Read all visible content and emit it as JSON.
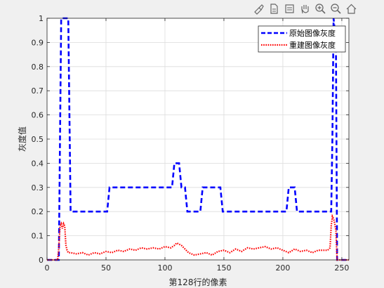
{
  "toolbar": {
    "icons": [
      "brush-icon",
      "export-icon",
      "data-tips-icon",
      "pan-icon",
      "zoom-in-icon",
      "zoom-out-icon",
      "home-icon"
    ]
  },
  "chart_data": {
    "type": "line",
    "xlabel": "第128行的像素",
    "ylabel": "灰度值",
    "xlim": [
      0,
      256
    ],
    "ylim": [
      0,
      1
    ],
    "xticks": [
      "0",
      "50",
      "100",
      "150",
      "200",
      "250"
    ],
    "xtick_values": [
      0,
      50,
      100,
      150,
      200,
      250
    ],
    "yticks": [
      "0",
      "0.1",
      "0.2",
      "0.3",
      "0.4",
      "0.5",
      "0.6",
      "0.7",
      "0.8",
      "0.9",
      "1"
    ],
    "ytick_values": [
      0,
      0.1,
      0.2,
      0.3,
      0.4,
      0.5,
      0.6,
      0.7,
      0.8,
      0.9,
      1
    ],
    "grid": true,
    "legend_position": "top-right",
    "series": [
      {
        "name": "原始图像灰度",
        "color": "#0000ff",
        "style": "dashed",
        "x": [
          0,
          10,
          11,
          12,
          18,
          19,
          20,
          51,
          52,
          53,
          54,
          105,
          106,
          107,
          108,
          109,
          110,
          111,
          112,
          113,
          114,
          115,
          116,
          117,
          118,
          119,
          120,
          121,
          122,
          123,
          130,
          131,
          132,
          133,
          134,
          135,
          136,
          137,
          138,
          139,
          140,
          141,
          142,
          143,
          144,
          145,
          146,
          147,
          148,
          149,
          150,
          151,
          152,
          153,
          154,
          155,
          156,
          203,
          204,
          205,
          206,
          207,
          208,
          209,
          210,
          211,
          212,
          213,
          214,
          215,
          216,
          217,
          218,
          219,
          220,
          221,
          222,
          223,
          240,
          241,
          242,
          243,
          244,
          245,
          246,
          247,
          248,
          249,
          250,
          251,
          252,
          253,
          254,
          255,
          256
        ],
        "y": [
          0,
          0,
          0.5,
          1,
          1,
          0.6,
          0.2,
          0.2,
          0.25,
          0.3,
          0.3,
          0.3,
          0.3,
          0.35,
          0.4,
          0.4,
          0.4,
          0.4,
          0.4,
          0.35,
          0.3,
          0.3,
          0.3,
          0.3,
          0.25,
          0.2,
          0.2,
          0.2,
          0.2,
          0.2,
          0.2,
          0.25,
          0.3,
          0.3,
          0.3,
          0.3,
          0.3,
          0.3,
          0.3,
          0.3,
          0.3,
          0.3,
          0.3,
          0.3,
          0.3,
          0.3,
          0.3,
          0.3,
          0.25,
          0.2,
          0.2,
          0.2,
          0.2,
          0.2,
          0.2,
          0.2,
          0.2,
          0.2,
          0.25,
          0.3,
          0.3,
          0.3,
          0.3,
          0.3,
          0.3,
          0.25,
          0.2,
          0.2,
          0.2,
          0.2,
          0.2,
          0.2,
          0.2,
          0.2,
          0.2,
          0.2,
          0.2,
          0.2,
          0.2,
          0.2,
          0.5,
          1,
          0.95,
          0.9,
          0,
          0,
          0,
          0,
          0,
          0,
          0,
          0,
          0,
          0,
          0
        ]
      },
      {
        "name": "重建图像灰度",
        "color": "#ff0000",
        "style": "dotted",
        "x": [
          0,
          9,
          10,
          11,
          12,
          13,
          14,
          15,
          16,
          17,
          18,
          20,
          25,
          30,
          35,
          40,
          45,
          50,
          55,
          60,
          65,
          70,
          75,
          80,
          85,
          90,
          95,
          100,
          105,
          108,
          110,
          112,
          114,
          116,
          118,
          120,
          125,
          130,
          135,
          140,
          145,
          150,
          155,
          160,
          165,
          170,
          175,
          180,
          185,
          190,
          195,
          200,
          205,
          210,
          215,
          220,
          225,
          230,
          235,
          238,
          240,
          241,
          242,
          243,
          244,
          245,
          246,
          247,
          256
        ],
        "y": [
          0,
          0,
          0.05,
          0.14,
          0.15,
          0.13,
          0.15,
          0.14,
          0.06,
          0.04,
          0.03,
          0.03,
          0.025,
          0.03,
          0.02,
          0.03,
          0.025,
          0.035,
          0.03,
          0.04,
          0.035,
          0.045,
          0.04,
          0.05,
          0.045,
          0.05,
          0.045,
          0.055,
          0.05,
          0.06,
          0.07,
          0.065,
          0.06,
          0.05,
          0.04,
          0.03,
          0.02,
          0.025,
          0.03,
          0.02,
          0.035,
          0.04,
          0.03,
          0.045,
          0.035,
          0.05,
          0.045,
          0.05,
          0.055,
          0.045,
          0.05,
          0.04,
          0.03,
          0.045,
          0.035,
          0.04,
          0.03,
          0.04,
          0.04,
          0.04,
          0.05,
          0.14,
          0.18,
          0.17,
          0.15,
          0.12,
          0,
          0,
          0
        ]
      }
    ]
  }
}
